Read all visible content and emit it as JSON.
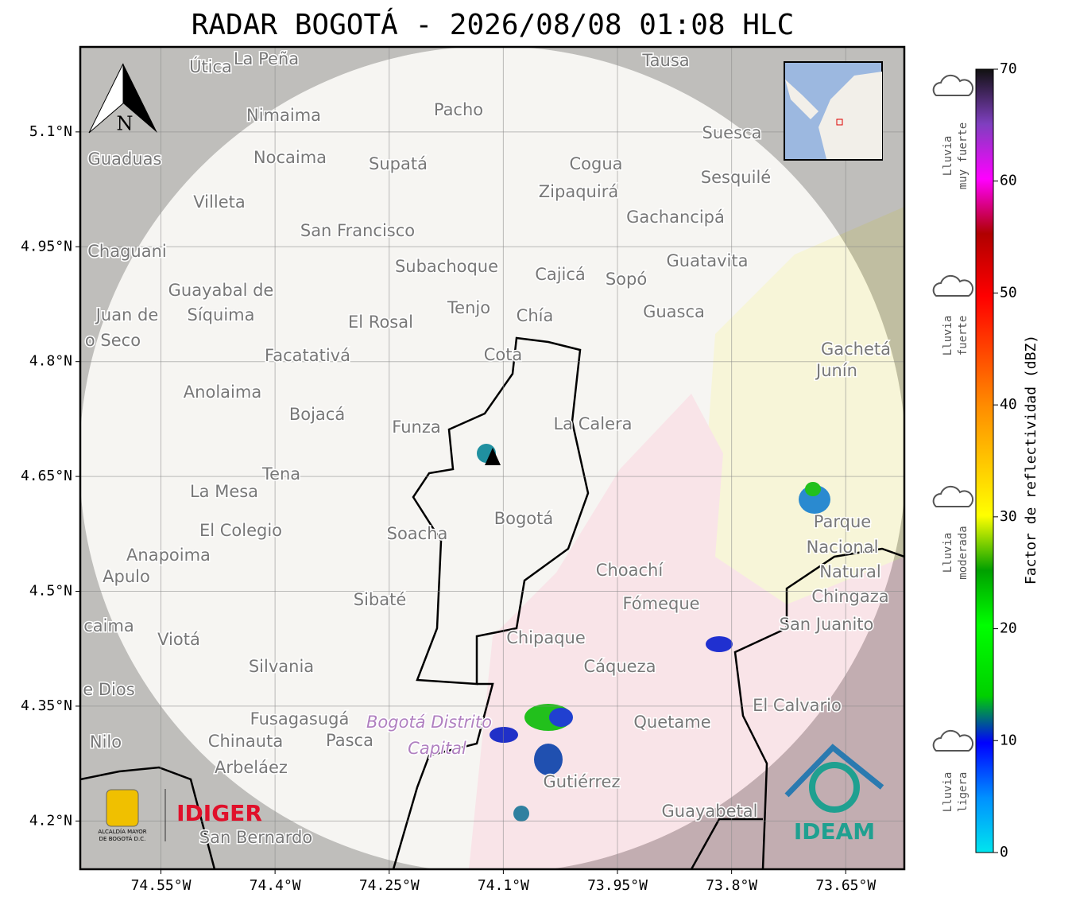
{
  "title": "RADAR BOGOTÁ - 2026/08/08 01:08 HLC",
  "map": {
    "xlim": [
      -74.656,
      -73.573
    ],
    "ylim": [
      4.137,
      5.211
    ],
    "grid": true,
    "xticks": [
      {
        "value": -74.55,
        "label": "74.55°W"
      },
      {
        "value": -74.4,
        "label": "74.4°W"
      },
      {
        "value": -74.25,
        "label": "74.25°W"
      },
      {
        "value": -74.1,
        "label": "74.1°W"
      },
      {
        "value": -73.95,
        "label": "73.95°W"
      },
      {
        "value": -73.8,
        "label": "73.8°W"
      },
      {
        "value": -73.65,
        "label": "73.65°W"
      }
    ],
    "yticks": [
      {
        "value": 5.1,
        "label": "5.1°N"
      },
      {
        "value": 4.95,
        "label": "4.95°N"
      },
      {
        "value": 4.8,
        "label": "4.8°N"
      },
      {
        "value": 4.65,
        "label": "4.65°N"
      },
      {
        "value": 4.5,
        "label": "4.5°N"
      },
      {
        "value": 4.35,
        "label": "4.35°N"
      },
      {
        "value": 4.2,
        "label": "4.2°N"
      }
    ],
    "north_label": "N",
    "places": [
      "Útica",
      "La Peña",
      "Tausa",
      "Pacho",
      "Nimaima",
      "Suesca",
      "Guaduas",
      "Nocaima",
      "Supatá",
      "Cogua",
      "Zipaquirá",
      "Sesquilé",
      "Villeta",
      "Gachancipá",
      "San Francisco",
      "Chaguani",
      "Guatavita",
      "Subachoque",
      "Cajicá",
      "Sopó",
      "Guayabal de",
      "Síquima",
      "Juan de",
      "o Seco",
      "Tenjo",
      "El Rosal",
      "Chía",
      "Guasca",
      "Gachetá",
      "Junín",
      "Facatativá",
      "Cota",
      "Anolaima",
      "Bojacá",
      "Funza",
      "La Calera",
      "Tena",
      "La Mesa",
      "El Colegio",
      "Soacha",
      "Bogotá",
      "Parque",
      "Nacional",
      "Natural",
      "Chingaza",
      "Anapoima",
      "Apulo",
      "Choachí",
      "Fómeque",
      "Sibaté",
      "San Juanito",
      "caima",
      "Viotá",
      "Chipaque",
      "Silvania",
      "Cáqueza",
      "e Dios",
      "El Calvario",
      "Fusagasugá",
      "Quetame",
      "Bogotá Distrito",
      "Capital",
      "Nilo",
      "Chinauta",
      "Pasca",
      "Arbeláez",
      "Gutiérrez",
      "Guayabetal",
      "San Bernardo"
    ]
  },
  "colorbar": {
    "label": "Factor de reflectividad (dBZ)",
    "lim": [
      0,
      70
    ],
    "ticks": [
      0,
      10,
      20,
      30,
      40,
      50,
      60,
      70
    ],
    "categories": [
      [
        "Lluvia",
        "muy fuerte"
      ],
      [
        "Lluvia",
        "fuerte"
      ],
      [
        "Lluvia",
        "moderada"
      ],
      [
        "Lluvia",
        "ligera"
      ]
    ]
  },
  "logos": {
    "alcaldia": [
      "ALCALDÍA MAYOR",
      "DE BOGOTÁ D.C."
    ],
    "idiger": "IDIGER",
    "ideam": "IDEAM"
  }
}
